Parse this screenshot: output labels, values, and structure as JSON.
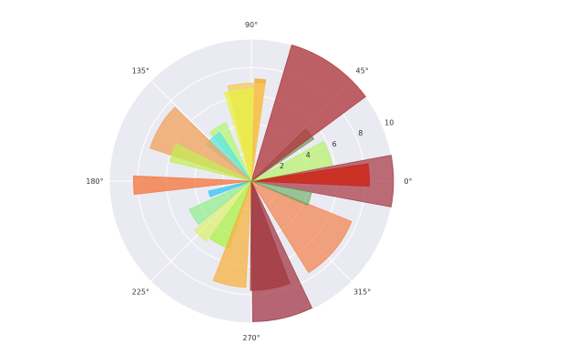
{
  "chart_data": {
    "type": "polar-bar",
    "background_color": "#EAEAF2",
    "grid": true,
    "grid_color": "#ffffff",
    "rlim": [
      0,
      10
    ],
    "radial_ticks": [
      {
        "value": 2,
        "label": "2"
      },
      {
        "value": 4,
        "label": "4"
      },
      {
        "value": 6,
        "label": "6"
      },
      {
        "value": 8,
        "label": "8"
      },
      {
        "value": 10,
        "label": "10"
      }
    ],
    "angle_ticks": [
      {
        "value": 0,
        "label": "0°"
      },
      {
        "value": 45,
        "label": "45°"
      },
      {
        "value": 90,
        "label": "90°"
      },
      {
        "value": 135,
        "label": "135°"
      },
      {
        "value": 180,
        "label": "180°"
      },
      {
        "value": 225,
        "label": "225°"
      },
      {
        "value": 270,
        "label": "270°"
      },
      {
        "value": 315,
        "label": "315°"
      }
    ],
    "bars": [
      {
        "theta": 0,
        "width": 21,
        "r": 10.0,
        "color": "#A83A45",
        "opacity": 0.72
      },
      {
        "theta": 4,
        "width": 6,
        "r": 8.0,
        "color": "#F26B3A",
        "opacity": 0.75
      },
      {
        "theta": 3,
        "width": 11,
        "r": 8.3,
        "color": "#C8281E",
        "opacity": 0.85
      },
      {
        "theta": 20,
        "width": 18,
        "r": 5.8,
        "color": "#B7F26A",
        "opacity": 0.7
      },
      {
        "theta": 39,
        "width": 10,
        "r": 5.3,
        "color": "#5A7A2A",
        "opacity": 0.55
      },
      {
        "theta": 55,
        "width": 37,
        "r": 10.0,
        "color": "#B0383F",
        "opacity": 0.78
      },
      {
        "theta": 85,
        "width": 6,
        "r": 7.2,
        "color": "#F5A623",
        "opacity": 0.8
      },
      {
        "theta": 93,
        "width": 22,
        "r": 6.9,
        "color": "#F7C85E",
        "opacity": 0.75
      },
      {
        "theta": 98,
        "width": 18,
        "r": 6.5,
        "color": "#E6F53A",
        "opacity": 0.7
      },
      {
        "theta": 122,
        "width": 17,
        "r": 4.5,
        "color": "#B5F57A",
        "opacity": 0.75
      },
      {
        "theta": 132,
        "width": 18,
        "r": 4.1,
        "color": "#54E5E6",
        "opacity": 0.7
      },
      {
        "theta": 149,
        "width": 26,
        "r": 7.5,
        "color": "#F2A25A",
        "opacity": 0.75
      },
      {
        "theta": 160,
        "width": 13,
        "r": 5.9,
        "color": "#C2EE52",
        "opacity": 0.7
      },
      {
        "theta": 182,
        "width": 9,
        "r": 8.3,
        "color": "#F47B45",
        "opacity": 0.8
      },
      {
        "theta": 197,
        "width": 8,
        "r": 3.1,
        "color": "#3CC8F0",
        "opacity": 0.8
      },
      {
        "theta": 212,
        "width": 15,
        "r": 4.8,
        "color": "#7EF07A",
        "opacity": 0.6
      },
      {
        "theta": 227,
        "width": 12,
        "r": 5.3,
        "color": "#D8F055",
        "opacity": 0.6
      },
      {
        "theta": 243,
        "width": 18,
        "r": 5.0,
        "color": "#A8F23C",
        "opacity": 0.7
      },
      {
        "theta": 258,
        "width": 18,
        "r": 7.5,
        "color": "#F5B142",
        "opacity": 0.75
      },
      {
        "theta": 280,
        "width": 21,
        "r": 7.7,
        "color": "#9E3A2C",
        "opacity": 0.78
      },
      {
        "theta": 283,
        "width": 25,
        "r": 9.9,
        "color": "#A33A47",
        "opacity": 0.75
      },
      {
        "theta": 320,
        "width": 36,
        "r": 7.6,
        "color": "#F47E45",
        "opacity": 0.68
      },
      {
        "theta": 343,
        "width": 13,
        "r": 4.3,
        "color": "#5FA85A",
        "opacity": 0.6
      }
    ]
  }
}
